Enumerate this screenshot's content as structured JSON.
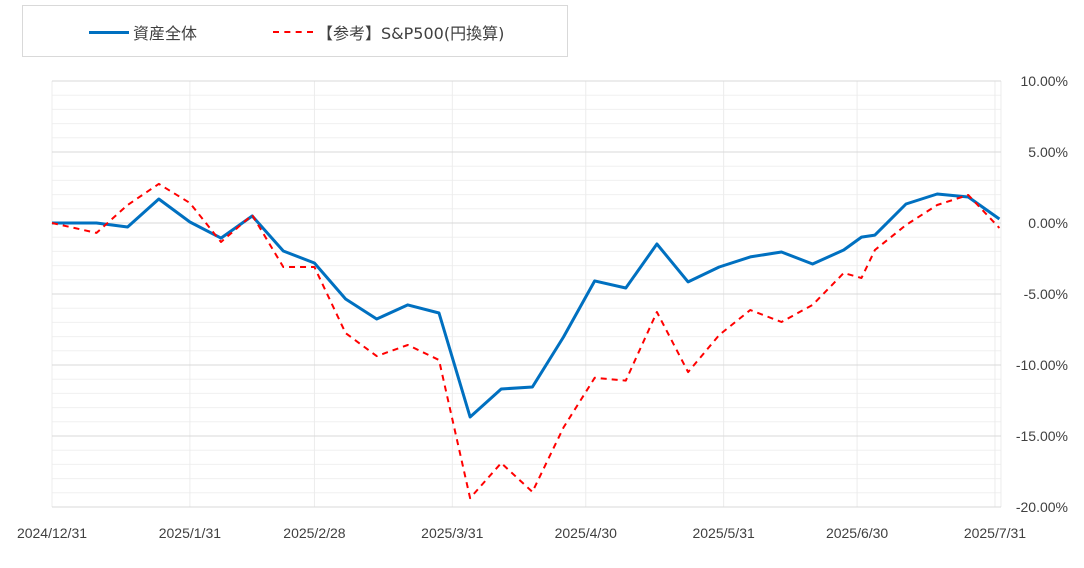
{
  "chart_data": {
    "type": "line",
    "title": "",
    "xlabel": "",
    "ylabel": "",
    "ylim": [
      -20,
      10
    ],
    "y_ticks": [
      "10.00%",
      "5.00%",
      "0.00%",
      "-5.00%",
      "-10.00%",
      "-15.00%",
      "-20.00%"
    ],
    "y_tick_values": [
      10,
      5,
      0,
      -5,
      -10,
      -15,
      -20
    ],
    "x_ticks": [
      "2024/12/31",
      "2025/1/31",
      "2025/2/28",
      "2025/3/31",
      "2025/4/30",
      "2025/5/31",
      "2025/6/30",
      "2025/7/31"
    ],
    "x_tick_dates": [
      "2024-12-31",
      "2025-01-31",
      "2025-02-28",
      "2025-03-31",
      "2025-04-30",
      "2025-05-31",
      "2025-06-30",
      "2025-07-31"
    ],
    "grid": true,
    "legend_position": "top-left",
    "x": [
      "2024-12-31",
      "2025-01-10",
      "2025-01-17",
      "2025-01-24",
      "2025-01-31",
      "2025-02-07",
      "2025-02-14",
      "2025-02-21",
      "2025-02-28",
      "2025-03-07",
      "2025-03-14",
      "2025-03-21",
      "2025-03-28",
      "2025-04-04",
      "2025-04-11",
      "2025-04-18",
      "2025-04-25",
      "2025-05-02",
      "2025-05-09",
      "2025-05-16",
      "2025-05-23",
      "2025-05-30",
      "2025-06-06",
      "2025-06-13",
      "2025-06-20",
      "2025-06-27",
      "2025-07-01",
      "2025-07-04",
      "2025-07-11",
      "2025-07-18",
      "2025-07-25",
      "2025-08-01"
    ],
    "series": [
      {
        "name": "資産全体",
        "color": "#0070c0",
        "style": "solid",
        "values": [
          0,
          0,
          -0.28,
          1.69,
          0.07,
          -1.06,
          0.49,
          -1.97,
          -2.82,
          -5.35,
          -6.76,
          -5.77,
          -6.34,
          -13.66,
          -11.69,
          -11.55,
          -8.03,
          -4.08,
          -4.58,
          -1.48,
          -4.15,
          -3.1,
          -2.39,
          -2.04,
          -2.89,
          -1.9,
          -0.99,
          -0.85,
          1.34,
          2.04,
          1.83,
          0.28
        ]
      },
      {
        "name": "【参考】S&P500(円換算)",
        "color": "#ff0000",
        "style": "dashed",
        "values": [
          0,
          -0.7,
          1.27,
          2.75,
          1.41,
          -1.34,
          0.56,
          -3.1,
          -3.1,
          -7.75,
          -9.37,
          -8.59,
          -9.65,
          -19.37,
          -16.9,
          -18.94,
          -14.4,
          -10.9,
          -11.1,
          -6.27,
          -10.5,
          -7.89,
          -6.13,
          -6.97,
          -5.77,
          -3.52,
          -3.87,
          -1.9,
          -0.14,
          1.27,
          1.97,
          -0.35
        ]
      }
    ]
  }
}
